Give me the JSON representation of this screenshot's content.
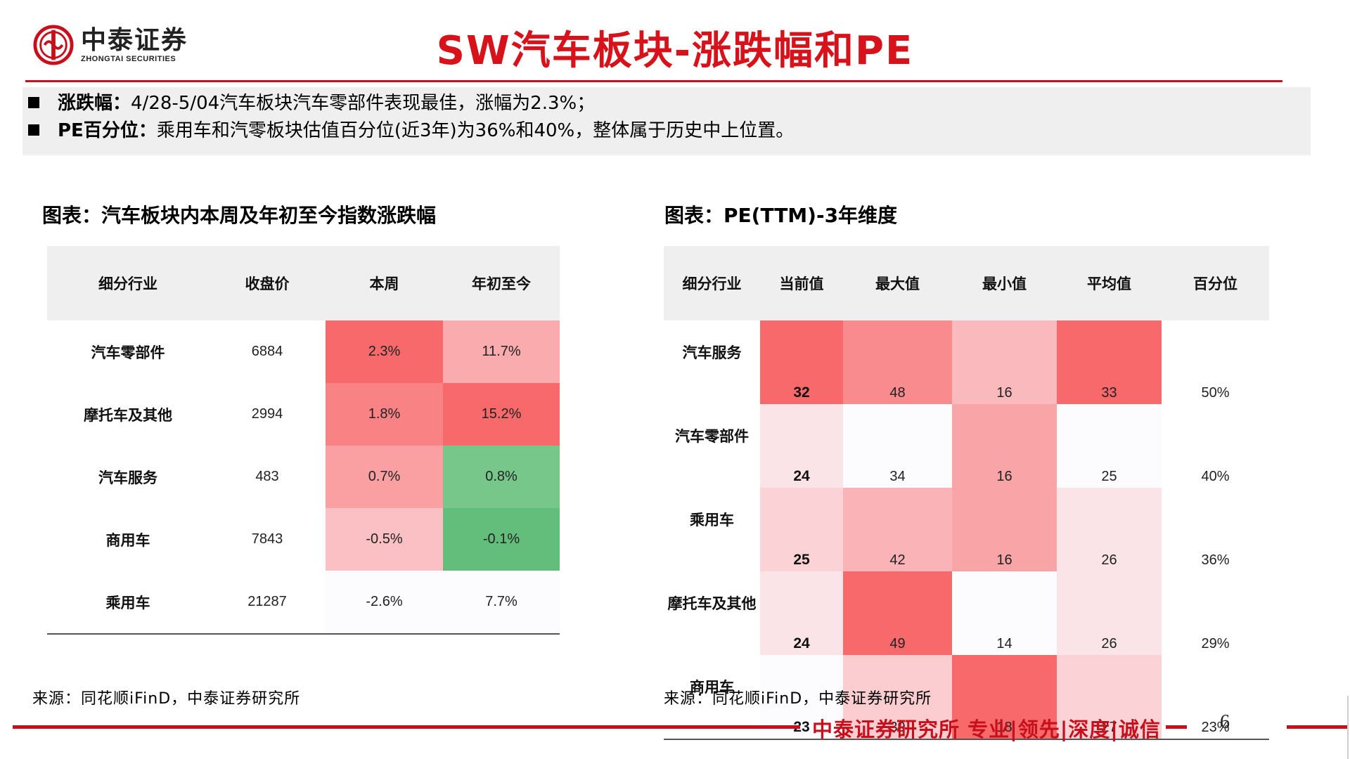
{
  "brand": {
    "name_cn": "中泰证券",
    "name_en": "ZHONGTAI SECURITIES",
    "logo_color": "#c8101c"
  },
  "page_title": "SW汽车板块-涨跌幅和PE",
  "summary": [
    {
      "label": "涨跌幅：",
      "text": "4/28-5/04汽车板块汽车零部件表现最佳，涨幅为2.3%；"
    },
    {
      "label": "PE百分位：",
      "text": "乘用车和汽零板块估值百分位(近3年)为36%和40%，整体属于历史中上位置。"
    }
  ],
  "left_table": {
    "caption": "图表：汽车板块内本周及年初至今指数涨跌幅",
    "headers": [
      "细分行业",
      "收盘价",
      "本周",
      "年初至今"
    ],
    "rows": [
      {
        "name": "汽车零部件",
        "close": "6884",
        "week": "2.3%",
        "ytd": "11.7%",
        "week_color": "#f8696b",
        "ytd_color": "#f9abae"
      },
      {
        "name": "摩托车及其他",
        "close": "2994",
        "week": "1.8%",
        "ytd": "15.2%",
        "week_color": "#f98285",
        "ytd_color": "#f8696b"
      },
      {
        "name": "汽车服务",
        "close": "483",
        "week": "0.7%",
        "ytd": "0.8%",
        "week_color": "#faa0a3",
        "ytd_color": "#77c78b"
      },
      {
        "name": "商用车",
        "close": "7843",
        "week": "-0.5%",
        "ytd": "-0.1%",
        "week_color": "#fbc0c3",
        "ytd_color": "#63be7b"
      },
      {
        "name": "乘用车",
        "close": "21287",
        "week": "-2.6%",
        "ytd": "7.7%",
        "week_color": "#fcfcff",
        "ytd_color": "#fcfcff"
      }
    ],
    "source": "来源：同花顺iFinD，中泰证券研究所"
  },
  "right_table": {
    "caption": "图表：PE(TTM)-3年维度",
    "headers": [
      "细分行业",
      "当前值",
      "最大值",
      "最小值",
      "平均值",
      "百分位"
    ],
    "rows": [
      {
        "name": "汽车服务",
        "cur": "32",
        "max": "48",
        "min": "16",
        "avg": "33",
        "pct": "50%",
        "cur_color": "#f8696b",
        "max_color": "#f98a8d",
        "min_color": "#fab9bc",
        "avg_color": "#f8696b"
      },
      {
        "name": "汽车零部件",
        "cur": "24",
        "max": "34",
        "min": "16",
        "avg": "25",
        "pct": "40%",
        "cur_color": "#fbe4e7",
        "max_color": "#fcfcff",
        "min_color": "#f9a4a7",
        "avg_color": "#fcfcff"
      },
      {
        "name": "乘用车",
        "cur": "25",
        "max": "42",
        "min": "16",
        "avg": "26",
        "pct": "36%",
        "cur_color": "#fbd2d5",
        "max_color": "#fab3b6",
        "min_color": "#f9a4a7",
        "avg_color": "#fbe4e7"
      },
      {
        "name": "摩托车及其他",
        "cur": "24",
        "max": "49",
        "min": "14",
        "avg": "26",
        "pct": "29%",
        "cur_color": "#fbe4e7",
        "max_color": "#f8696b",
        "min_color": "#fcfcff",
        "avg_color": "#fbe4e7"
      },
      {
        "name": "商用车",
        "cur": "23",
        "max": "39",
        "min": "18",
        "avg": "27",
        "pct": "23%",
        "cur_color": "#fcfcff",
        "max_color": "#fbcdd0",
        "min_color": "#f8696b",
        "avg_color": "#fbd2d5"
      }
    ],
    "source": "来源：同花顺iFinD，中泰证券研究所"
  },
  "footer": {
    "brand_line": "中泰证券研究所 专业|领先|深度|诚信",
    "page_number": "6"
  }
}
